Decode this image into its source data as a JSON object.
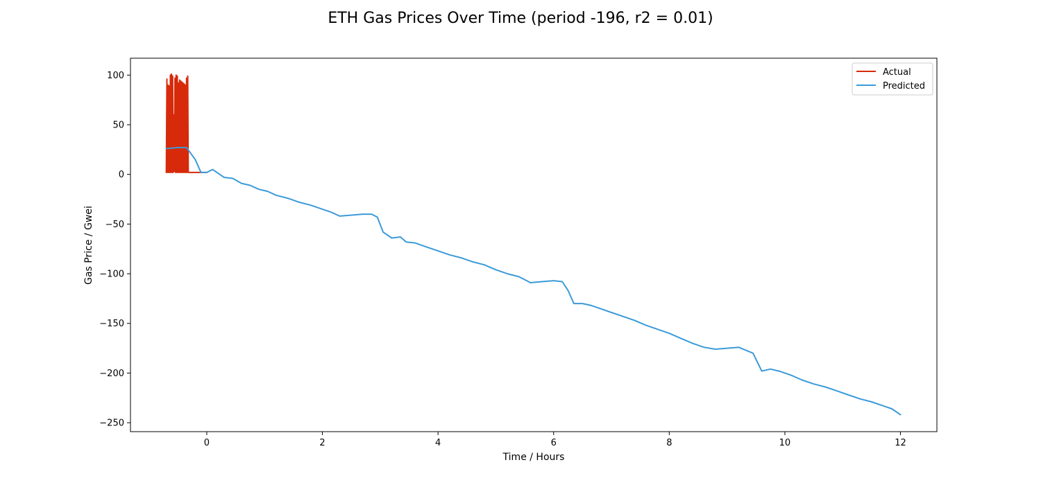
{
  "chart_data": {
    "type": "line",
    "title": "ETH Gas Prices Over Time (period -196, r2 = 0.01)",
    "xlabel": "Time / Hours",
    "ylabel": "Gas Price / Gwei",
    "xlim": [
      -1.32,
      12.63
    ],
    "ylim": [
      -259,
      117
    ],
    "xticks": [
      0,
      2,
      4,
      6,
      8,
      10,
      12
    ],
    "yticks": [
      100,
      50,
      0,
      -50,
      -100,
      -150,
      -200,
      -250
    ],
    "xtick_labels": [
      "0",
      "2",
      "4",
      "6",
      "8",
      "10",
      "12"
    ],
    "ytick_labels": [
      "100",
      "50",
      "0",
      "−50",
      "−100",
      "−150",
      "−200",
      "−250"
    ],
    "grid": false,
    "legend_position": "upper right",
    "series": [
      {
        "name": "Actual",
        "color": "#d62a0b",
        "x": [
          -0.7,
          -0.69,
          -0.68,
          -0.67,
          -0.66,
          -0.65,
          -0.64,
          -0.63,
          -0.62,
          -0.61,
          -0.6,
          -0.59,
          -0.58,
          -0.57,
          -0.56,
          -0.55,
          -0.54,
          -0.53,
          -0.52,
          -0.51,
          -0.5,
          -0.49,
          -0.48,
          -0.47,
          -0.46,
          -0.45,
          -0.44,
          -0.43,
          -0.42,
          -0.41,
          -0.4,
          -0.39,
          -0.38,
          -0.37,
          -0.36,
          -0.35,
          -0.34,
          -0.33,
          -0.32,
          -0.25,
          -0.1,
          0.0
        ],
        "y": [
          2,
          96,
          2,
          90,
          2,
          89,
          2,
          100,
          2,
          101,
          2,
          99,
          2,
          60,
          3,
          97,
          2,
          100,
          2,
          99,
          2,
          92,
          2,
          95,
          2,
          94,
          2,
          93,
          2,
          92,
          2,
          91,
          2,
          90,
          2,
          97,
          2,
          99,
          2,
          2,
          2,
          2
        ]
      },
      {
        "name": "Predicted",
        "color": "#3a9ad9",
        "x": [
          -0.7,
          -0.5,
          -0.35,
          -0.2,
          -0.1,
          0.0,
          0.1,
          0.2,
          0.3,
          0.45,
          0.6,
          0.75,
          0.9,
          1.05,
          1.2,
          1.4,
          1.6,
          1.8,
          2.0,
          2.15,
          2.3,
          2.5,
          2.7,
          2.85,
          2.95,
          3.05,
          3.2,
          3.35,
          3.45,
          3.6,
          3.8,
          4.0,
          4.2,
          4.4,
          4.6,
          4.8,
          5.0,
          5.2,
          5.4,
          5.6,
          5.8,
          6.0,
          6.15,
          6.25,
          6.35,
          6.5,
          6.65,
          6.8,
          7.0,
          7.2,
          7.4,
          7.6,
          7.8,
          8.0,
          8.2,
          8.4,
          8.6,
          8.8,
          9.0,
          9.2,
          9.45,
          9.6,
          9.75,
          9.9,
          10.1,
          10.3,
          10.5,
          10.7,
          10.9,
          11.1,
          11.3,
          11.5,
          11.7,
          11.85,
          12.0
        ],
        "y": [
          26,
          27,
          27,
          15,
          2,
          2,
          5,
          1,
          -3,
          -4,
          -9,
          -11,
          -15,
          -17,
          -21,
          -24,
          -28,
          -31,
          -35,
          -38,
          -42,
          -41,
          -40,
          -40,
          -43,
          -58,
          -64,
          -63,
          -68,
          -69,
          -73,
          -77,
          -81,
          -84,
          -88,
          -91,
          -96,
          -100,
          -103,
          -109,
          -108,
          -107,
          -108,
          -117,
          -130,
          -130,
          -132,
          -135,
          -139,
          -143,
          -147,
          -152,
          -156,
          -160,
          -165,
          -170,
          -174,
          -176,
          -175,
          -174,
          -180,
          -198,
          -196,
          -198,
          -202,
          -207,
          -211,
          -214,
          -218,
          -222,
          -226,
          -229,
          -233,
          -236,
          -242
        ]
      }
    ]
  }
}
